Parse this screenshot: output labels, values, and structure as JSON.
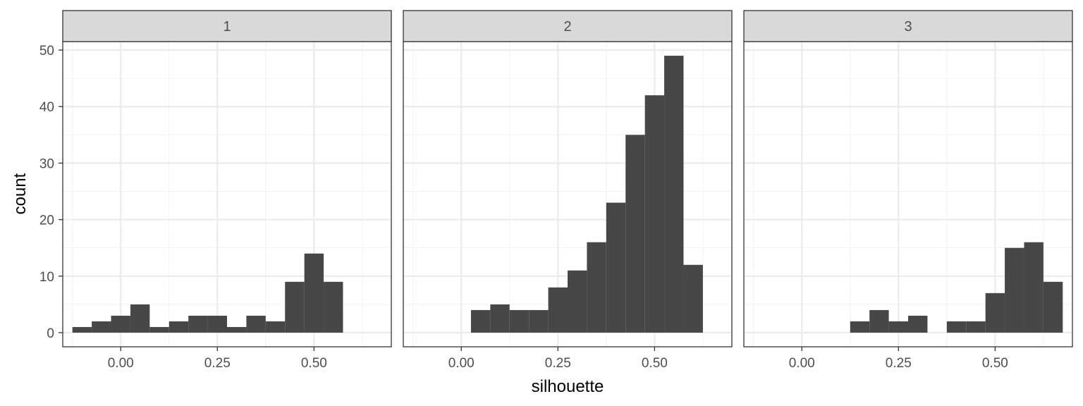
{
  "chart_data": {
    "type": "bar",
    "xlabel": "silhouette",
    "ylabel": "count",
    "xlim": [
      -0.15,
      0.7
    ],
    "ylim": [
      -2.5,
      51.5
    ],
    "x_ticks": [
      0.0,
      0.25,
      0.5
    ],
    "x_tick_labels": [
      "0.00",
      "0.25",
      "0.50"
    ],
    "y_ticks": [
      0,
      10,
      20,
      30,
      40,
      50
    ],
    "y_tick_labels": [
      "0",
      "10",
      "20",
      "30",
      "40",
      "50"
    ],
    "bin_width": 0.05,
    "grid": true,
    "bar_color": "#474747",
    "panels": [
      {
        "label": "1",
        "bins": [
          {
            "x": -0.1,
            "count": 1
          },
          {
            "x": -0.05,
            "count": 2
          },
          {
            "x": 0.0,
            "count": 3
          },
          {
            "x": 0.05,
            "count": 5
          },
          {
            "x": 0.1,
            "count": 1
          },
          {
            "x": 0.15,
            "count": 2
          },
          {
            "x": 0.2,
            "count": 3
          },
          {
            "x": 0.25,
            "count": 3
          },
          {
            "x": 0.3,
            "count": 1
          },
          {
            "x": 0.35,
            "count": 3
          },
          {
            "x": 0.4,
            "count": 2
          },
          {
            "x": 0.45,
            "count": 9
          },
          {
            "x": 0.5,
            "count": 14
          },
          {
            "x": 0.55,
            "count": 9
          }
        ]
      },
      {
        "label": "2",
        "bins": [
          {
            "x": 0.05,
            "count": 4
          },
          {
            "x": 0.1,
            "count": 5
          },
          {
            "x": 0.15,
            "count": 4
          },
          {
            "x": 0.2,
            "count": 4
          },
          {
            "x": 0.25,
            "count": 8
          },
          {
            "x": 0.3,
            "count": 11
          },
          {
            "x": 0.35,
            "count": 16
          },
          {
            "x": 0.4,
            "count": 23
          },
          {
            "x": 0.45,
            "count": 35
          },
          {
            "x": 0.5,
            "count": 42
          },
          {
            "x": 0.55,
            "count": 49
          },
          {
            "x": 0.6,
            "count": 12
          }
        ]
      },
      {
        "label": "3",
        "bins": [
          {
            "x": 0.15,
            "count": 2
          },
          {
            "x": 0.2,
            "count": 4
          },
          {
            "x": 0.25,
            "count": 2
          },
          {
            "x": 0.3,
            "count": 3
          },
          {
            "x": 0.4,
            "count": 2
          },
          {
            "x": 0.45,
            "count": 2
          },
          {
            "x": 0.5,
            "count": 7
          },
          {
            "x": 0.55,
            "count": 15
          },
          {
            "x": 0.6,
            "count": 16
          },
          {
            "x": 0.65,
            "count": 9
          }
        ]
      }
    ]
  }
}
